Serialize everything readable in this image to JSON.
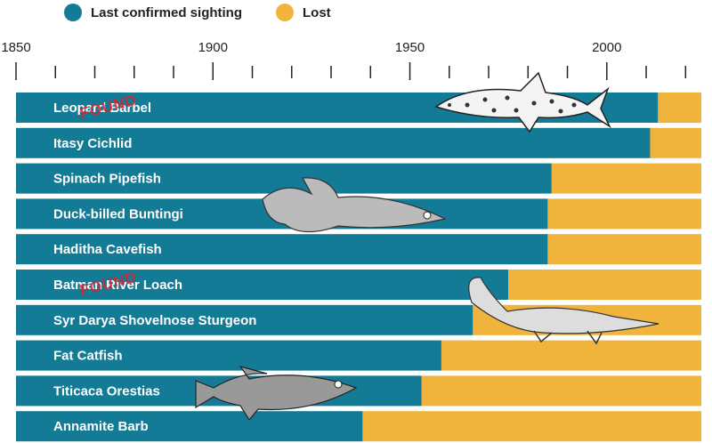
{
  "chart_data": {
    "type": "timeline_bar",
    "categories": [
      "Leopard Barbel",
      "Itasy Cichlid",
      "Spinach Pipefish",
      "Duck-billed Buntingi",
      "Haditha Cavefish",
      "Batman River Loach",
      "Syr Darya Shovelnose Sturgeon",
      "Fat Catfish",
      "Titicaca Orestias",
      "Annamite Barb"
    ],
    "series": [
      {
        "name": "Last confirmed sighting",
        "color": "#137b96",
        "values": [
          2013,
          2011,
          1986,
          1985,
          1985,
          1975,
          1966,
          1958,
          1953,
          1938
        ]
      },
      {
        "name": "Lost",
        "color": "#f0b43c"
      }
    ],
    "annotations": [
      {
        "text": "FOUND",
        "category": "Leopard Barbel"
      },
      {
        "text": "FOUND",
        "category": "Batman River Loach"
      }
    ],
    "xlim": [
      1850,
      2024
    ],
    "xticks": [
      1850,
      1900,
      1950,
      2000
    ],
    "minor_xticks": [
      1860,
      1870,
      1880,
      1890,
      1910,
      1920,
      1930,
      1940,
      1960,
      1970,
      1980,
      1990,
      2010,
      2020
    ],
    "legend": "top-left"
  }
}
